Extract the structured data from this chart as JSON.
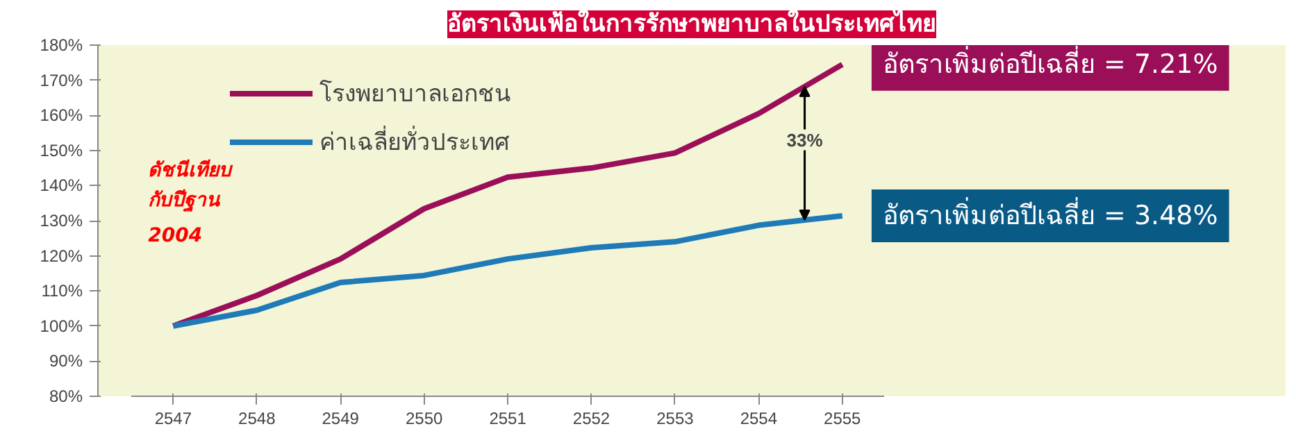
{
  "chart_data": {
    "type": "line",
    "title": "อัตราเงินเฟ้อในการรักษาพยาบาลในประเทศไทย",
    "categories": [
      "2547",
      "2548",
      "2549",
      "2550",
      "2551",
      "2552",
      "2553",
      "2554",
      "2555"
    ],
    "series": [
      {
        "name": "โรงพยาบาลเอกชน",
        "color": "#9b0e58",
        "values": [
          100,
          108.7,
          119.1,
          133.4,
          142.4,
          145,
          149.3,
          160.5,
          174.5
        ]
      },
      {
        "name": "ค่าเฉลี่ยทั่วประเทศ",
        "color": "#1f7ab8",
        "values": [
          100,
          104.5,
          112.4,
          114.4,
          119.1,
          122.3,
          124,
          128.7,
          131.4
        ]
      }
    ],
    "ylim": [
      80,
      180
    ],
    "yticks": [
      {
        "value": 80,
        "label": "80%"
      },
      {
        "value": 90,
        "label": "90%"
      },
      {
        "value": 100,
        "label": "100%"
      },
      {
        "value": 110,
        "label": "110%"
      },
      {
        "value": 120,
        "label": "120%"
      },
      {
        "value": 130,
        "label": "130%"
      },
      {
        "value": 140,
        "label": "140%"
      },
      {
        "value": 150,
        "label": "150%"
      },
      {
        "value": 160,
        "label": "160%"
      },
      {
        "value": 170,
        "label": "170%"
      },
      {
        "value": 180,
        "label": "180%"
      }
    ],
    "grid": false,
    "legend": "top left",
    "marker": "none",
    "line_style": "solid",
    "annotations": [
      "ดัชนีเทียบ\nกับปีฐาน\n2004",
      {
        "text": "33%",
        "y": 153
      },
      "อัตราเพิ่มต่อปีเฉลี่ย = 7.21%",
      "อัตราเพิ่มต่อปีเฉลี่ย = 3.48%"
    ]
  }
}
